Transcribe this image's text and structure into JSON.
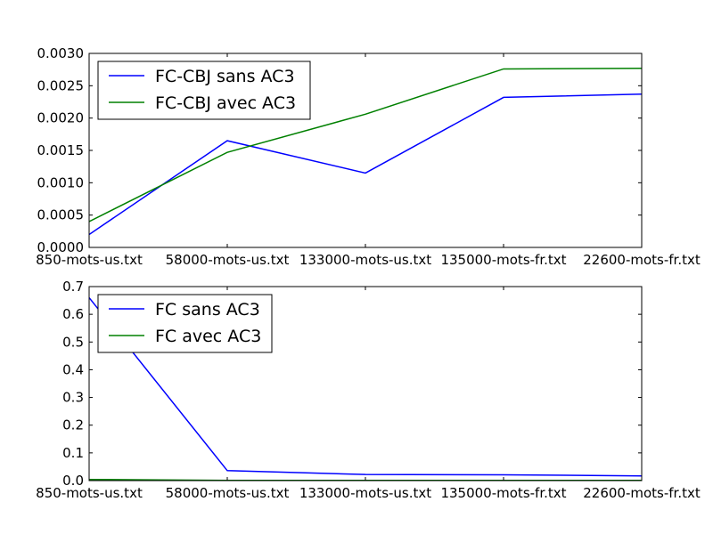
{
  "chart_data": [
    {
      "type": "line",
      "title": "",
      "xlabel": "",
      "ylabel": "",
      "categories": [
        "850-mots-us.txt",
        "58000-mots-us.txt",
        "133000-mots-us.txt",
        "135000-mots-fr.txt",
        "22600-mots-fr.txt"
      ],
      "ylim": [
        0,
        0.003
      ],
      "yticks": [
        "0.0000",
        "0.0005",
        "0.0010",
        "0.0015",
        "0.0020",
        "0.0025",
        "0.0030"
      ],
      "legend_position": "upper-left",
      "grid": false,
      "series": [
        {
          "name": "FC-CBJ sans AC3",
          "color": "#0000ff",
          "values": [
            0.0002,
            0.00165,
            0.00115,
            0.00232,
            0.00237
          ]
        },
        {
          "name": "FC-CBJ avec AC3",
          "color": "#008000",
          "values": [
            0.0004,
            0.00147,
            0.00206,
            0.00276,
            0.00277
          ]
        }
      ]
    },
    {
      "type": "line",
      "title": "",
      "xlabel": "",
      "ylabel": "",
      "categories": [
        "850-mots-us.txt",
        "58000-mots-us.txt",
        "133000-mots-us.txt",
        "135000-mots-fr.txt",
        "22600-mots-fr.txt"
      ],
      "ylim": [
        0,
        0.7
      ],
      "yticks": [
        "0.0",
        "0.1",
        "0.2",
        "0.3",
        "0.4",
        "0.5",
        "0.6",
        "0.7"
      ],
      "legend_position": "upper-left",
      "grid": false,
      "series": [
        {
          "name": "FC sans AC3",
          "color": "#0000ff",
          "values": [
            0.66,
            0.036,
            0.022,
            0.021,
            0.017
          ]
        },
        {
          "name": "FC avec AC3",
          "color": "#008000",
          "values": [
            0.004,
            0.001,
            0.001,
            0.001,
            0.001
          ]
        }
      ]
    }
  ]
}
